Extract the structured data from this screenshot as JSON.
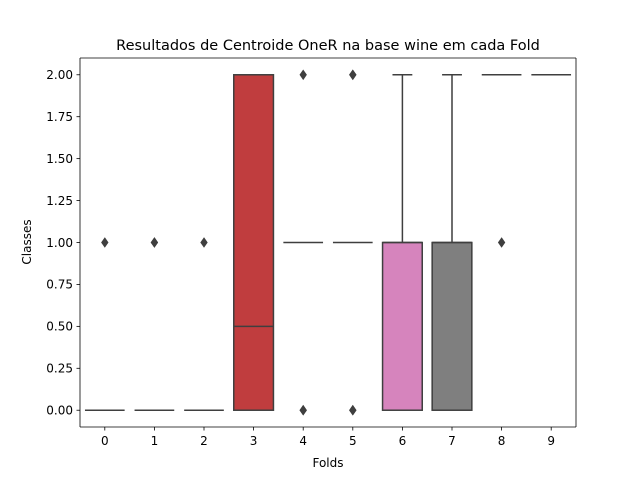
{
  "chart_data": {
    "type": "box",
    "title": "Resultados de Centroide OneR na base wine em cada Fold",
    "xlabel": "Folds",
    "ylabel": "Classes",
    "ylim": [
      -0.1,
      2.1
    ],
    "yticks": [
      0.0,
      0.25,
      0.5,
      0.75,
      1.0,
      1.25,
      1.5,
      1.75,
      2.0
    ],
    "ytick_labels": [
      "0.00",
      "0.25",
      "0.50",
      "0.75",
      "1.00",
      "1.25",
      "1.50",
      "1.75",
      "2.00"
    ],
    "categories": [
      "0",
      "1",
      "2",
      "3",
      "4",
      "5",
      "6",
      "7",
      "8",
      "9"
    ],
    "boxes": [
      {
        "category": "0",
        "q1": 0,
        "median": 0,
        "q3": 0,
        "whisker_low": 0,
        "whisker_high": 0,
        "outliers": [
          1
        ],
        "color": "#3274a1"
      },
      {
        "category": "1",
        "q1": 0,
        "median": 0,
        "q3": 0,
        "whisker_low": 0,
        "whisker_high": 0,
        "outliers": [
          1,
          1
        ],
        "color": "#e1812c"
      },
      {
        "category": "2",
        "q1": 0,
        "median": 0,
        "q3": 0,
        "whisker_low": 0,
        "whisker_high": 0,
        "outliers": [
          1
        ],
        "color": "#3a923a"
      },
      {
        "category": "3",
        "q1": 0,
        "median": 0.5,
        "q3": 2,
        "whisker_low": 0,
        "whisker_high": 2,
        "outliers": [],
        "color": "#c03d3e"
      },
      {
        "category": "4",
        "q1": 1,
        "median": 1,
        "q3": 1,
        "whisker_low": 1,
        "whisker_high": 1,
        "outliers": [
          0,
          0,
          2
        ],
        "color": "#9372b2"
      },
      {
        "category": "5",
        "q1": 1,
        "median": 1,
        "q3": 1,
        "whisker_low": 1,
        "whisker_high": 1,
        "outliers": [
          0,
          0,
          2,
          2
        ],
        "color": "#845b53"
      },
      {
        "category": "6",
        "q1": 0,
        "median": 1,
        "q3": 1,
        "whisker_low": 0,
        "whisker_high": 2,
        "outliers": [],
        "color": "#d684bd"
      },
      {
        "category": "7",
        "q1": 0,
        "median": 1,
        "q3": 1,
        "whisker_low": 0,
        "whisker_high": 2,
        "outliers": [],
        "color": "#7f7f7f"
      },
      {
        "category": "8",
        "q1": 2,
        "median": 2,
        "q3": 2,
        "whisker_low": 2,
        "whisker_high": 2,
        "outliers": [
          1
        ],
        "color": "#a9aa35"
      },
      {
        "category": "9",
        "q1": 2,
        "median": 2,
        "q3": 2,
        "whisker_low": 2,
        "whisker_high": 2,
        "outliers": [],
        "color": "#2eabb8"
      }
    ],
    "line_color": "#3f3f3f",
    "grid": false,
    "legend": "none"
  }
}
